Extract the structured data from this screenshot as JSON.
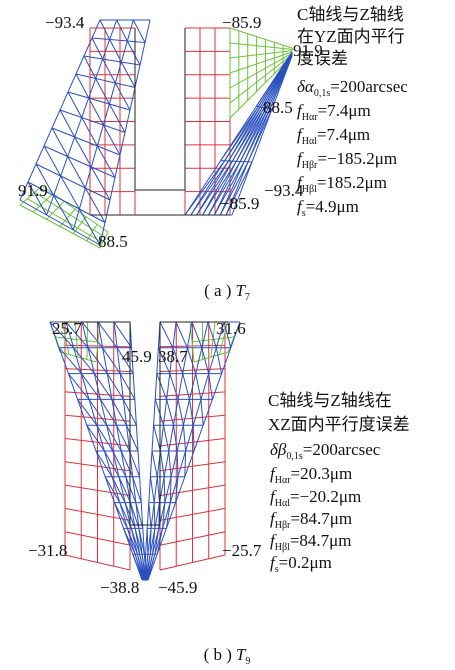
{
  "panels": [
    {
      "labels": [
        "−93.4",
        "−85.9",
        "91.9",
        "88.5",
        "−93.4",
        "91.9",
        "−85.9",
        "88.5"
      ],
      "desc": [
        "C轴线与Z轴线",
        "在YZ面内平行",
        "度误差"
      ],
      "params": [
        {
          "sym": "δα",
          "sub": "0,1s",
          "rest": "=200arcsec"
        },
        {
          "sym": "f",
          "sub": "Hαr",
          "rest": "=7.4μm"
        },
        {
          "sym": "f",
          "sub": "Hαl",
          "rest": "=7.4μm"
        },
        {
          "sym": "f",
          "sub": "Hβr",
          "rest": "=−185.2μm"
        },
        {
          "sym": "f",
          "sub": "Hβl",
          "rest": "=185.2μm"
        },
        {
          "sym": "f",
          "sub": "s",
          "rest": "=4.9μm"
        }
      ],
      "caption": {
        "label": "( a )",
        "sym": "T",
        "sub": "7"
      }
    },
    {
      "labels": [
        "25.7",
        "31.6",
        "45.9",
        "38.7",
        "−31.8",
        "−25.7",
        "−38.8",
        "−45.9"
      ],
      "desc": [
        "C轴线与Z轴线在",
        "XZ面内平行度误差"
      ],
      "params": [
        {
          "sym": "δβ",
          "sub": "0,1s",
          "rest": "=200arcsec"
        },
        {
          "sym": "f",
          "sub": "Hαr",
          "rest": "=20.3μm"
        },
        {
          "sym": "f",
          "sub": "Hαl",
          "rest": "=−20.2μm"
        },
        {
          "sym": "f",
          "sub": "Hβr",
          "rest": "=84.7μm"
        },
        {
          "sym": "f",
          "sub": "Hβl",
          "rest": "=84.7μm"
        },
        {
          "sym": "f",
          "sub": "s",
          "rest": "=0.2μm"
        }
      ],
      "caption": {
        "label": "( b )",
        "sym": "T",
        "sub": "9"
      }
    }
  ]
}
